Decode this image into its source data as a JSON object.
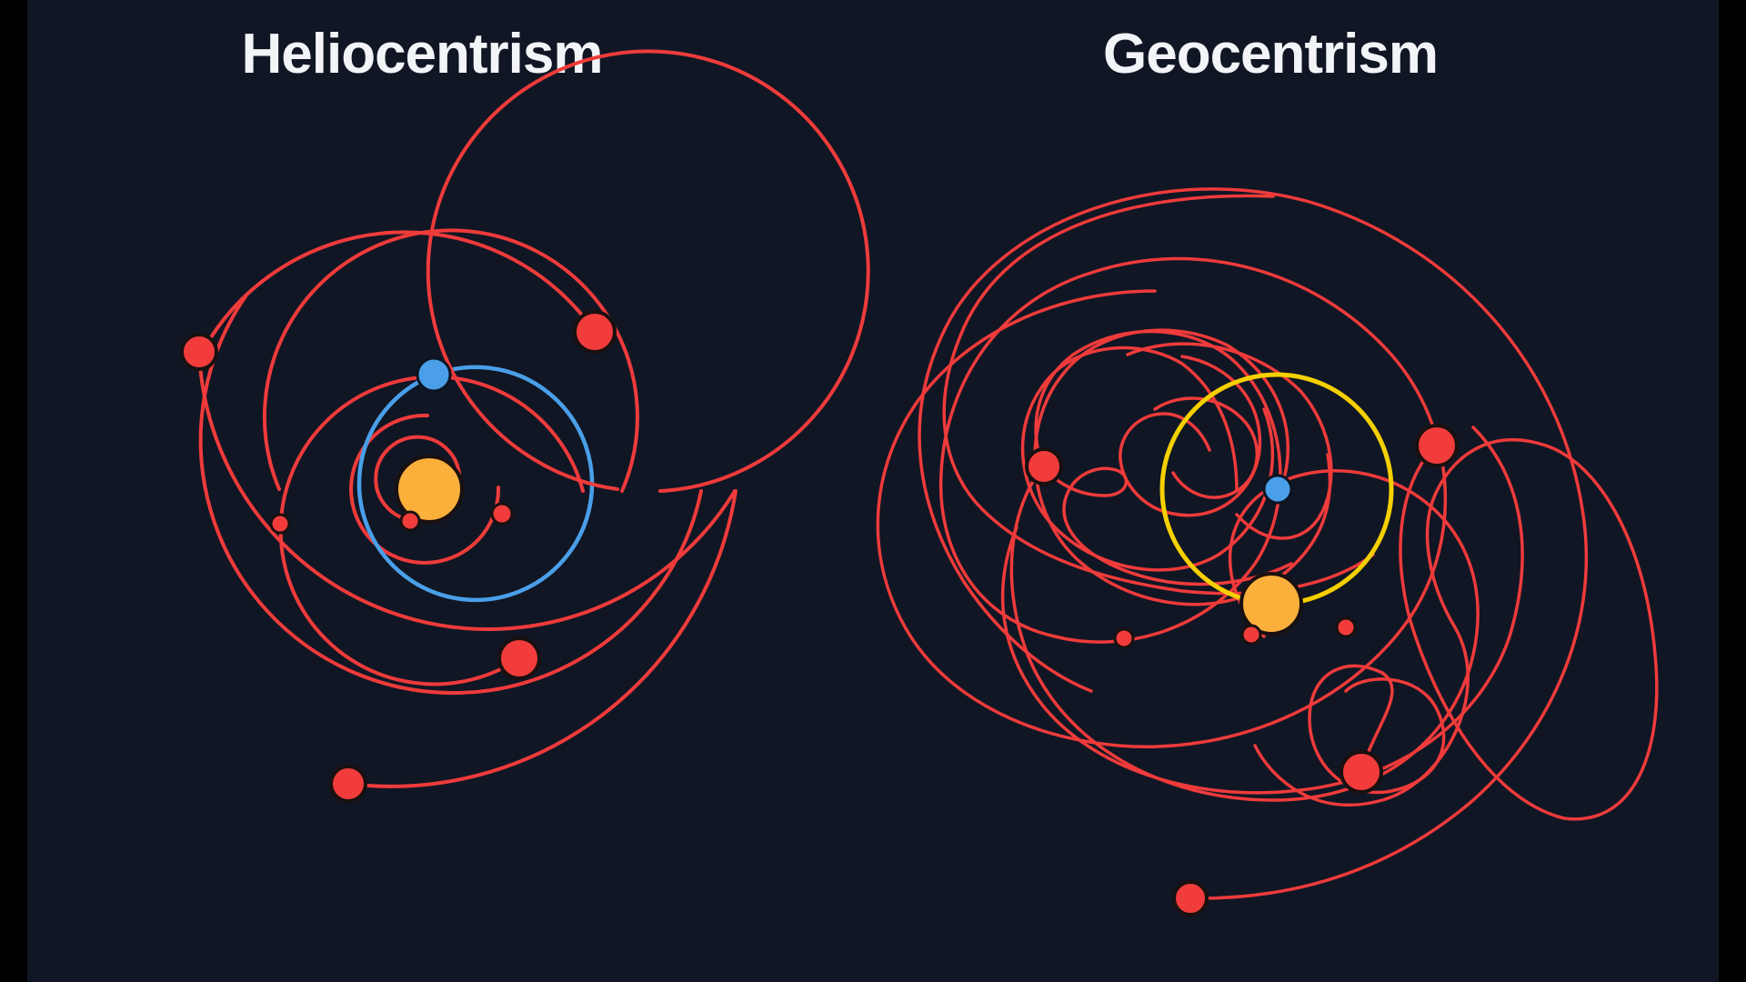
{
  "panels": {
    "heliocentrism": {
      "title": "Heliocentrism"
    },
    "geocentrism": {
      "title": "Geocentrism"
    }
  },
  "colors": {
    "background": "#101624",
    "frame": "#000000",
    "title": "#f2f4f8",
    "sun": "#fbb03b",
    "earth": "#4a9fe8",
    "planet": "#f23c3c",
    "planet_orbit": "#ef3b3b",
    "earth_orbit": "#4a9fe8",
    "sun_path": "#f5d000"
  },
  "icons": {
    "sun": "sun-icon",
    "earth": "earth-icon",
    "planet": "planet-icon"
  }
}
